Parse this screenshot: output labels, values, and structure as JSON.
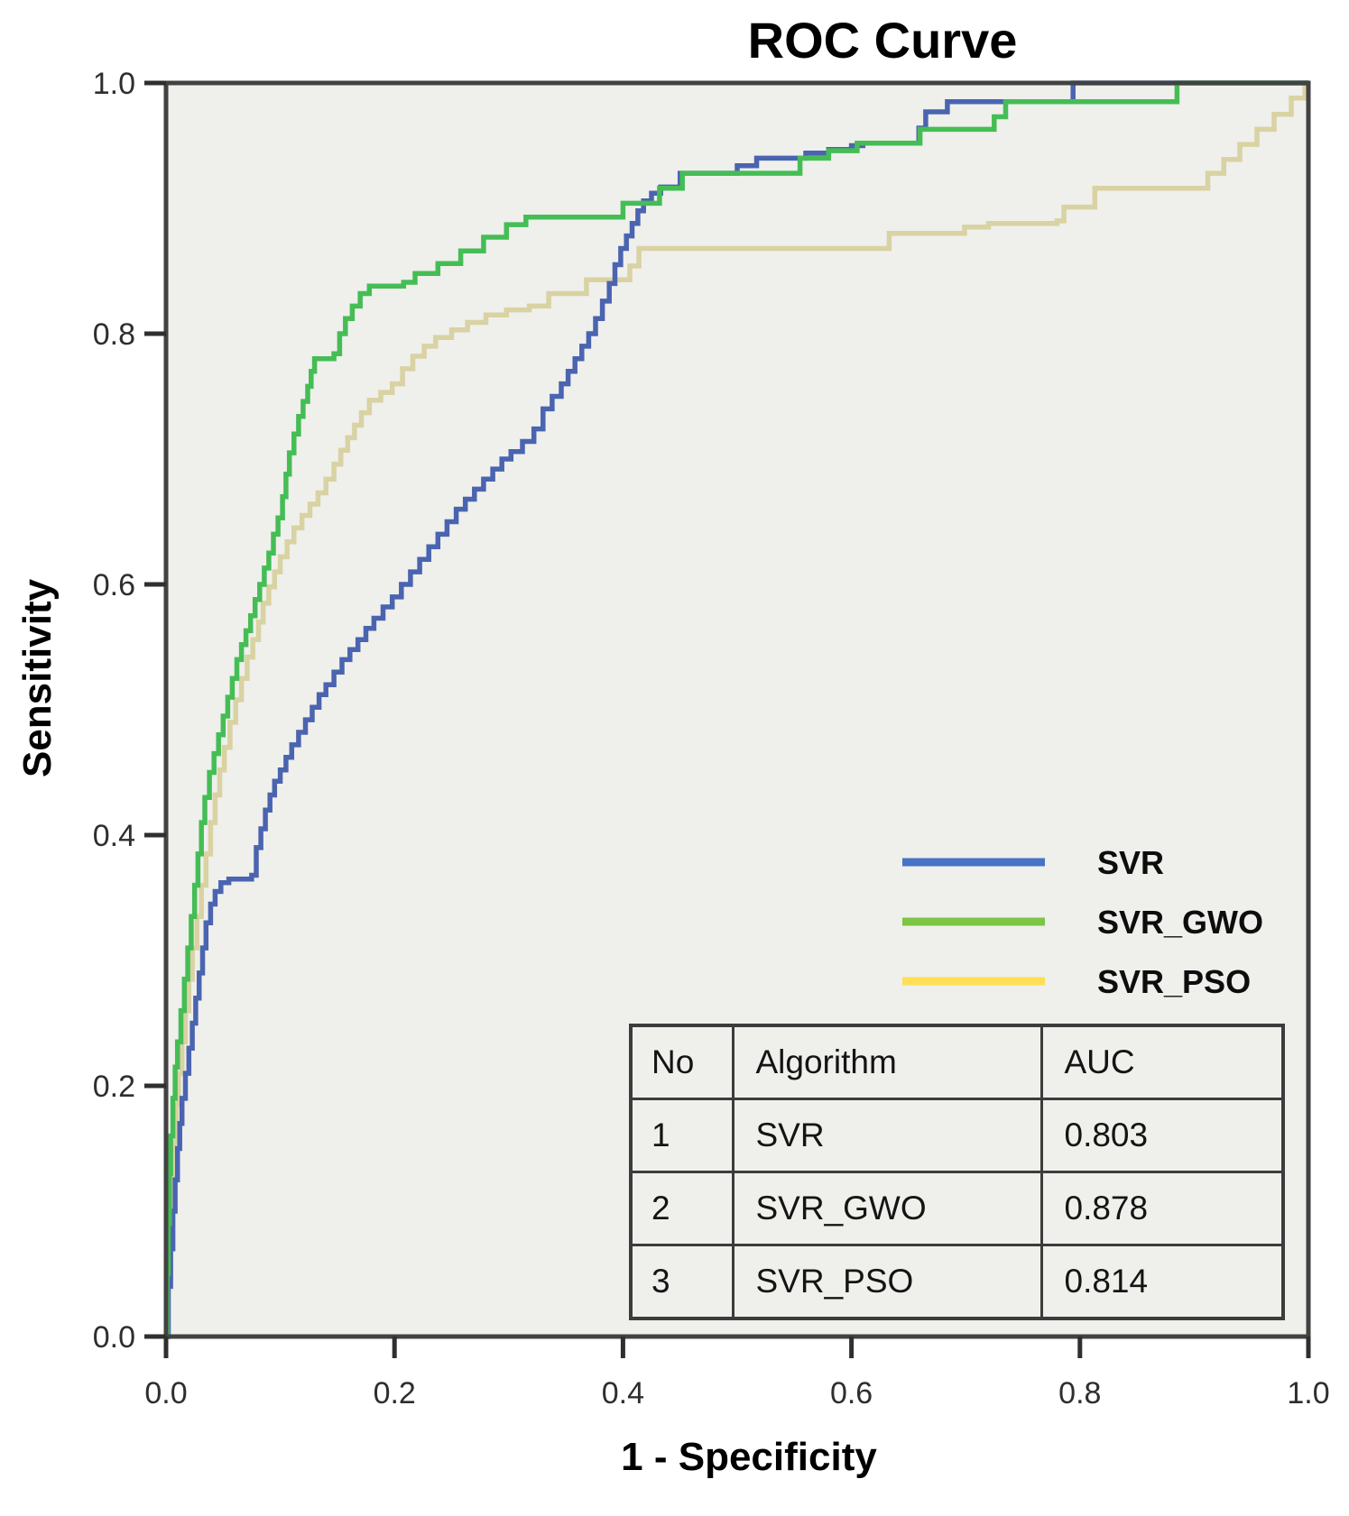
{
  "title": "ROC Curve",
  "axes": {
    "x": {
      "label": "1 - Specificity",
      "tick_labels": [
        "0.0",
        "0.2",
        "0.4",
        "0.6",
        "0.8",
        "1.0"
      ],
      "range": [
        0,
        1
      ]
    },
    "y": {
      "label": "Sensitivity",
      "tick_labels": [
        "0.0",
        "0.2",
        "0.4",
        "0.6",
        "0.8",
        "1.0"
      ],
      "range": [
        0,
        1
      ]
    }
  },
  "legend": [
    {
      "label": "SVR",
      "color": "#4673c6"
    },
    {
      "label": "SVR_GWO",
      "color": "#7dc544"
    },
    {
      "label": "SVR_PSO",
      "color": "#ffdf55"
    }
  ],
  "auc_table": {
    "headers": [
      "No",
      "Algorithm",
      "AUC"
    ],
    "rows": [
      [
        "1",
        "SVR",
        "0.803"
      ],
      [
        "2",
        "SVR_GWO",
        "0.878"
      ],
      [
        "3",
        "SVR_PSO",
        "0.814"
      ]
    ]
  },
  "colors": {
    "curve_svr": "#4a64b0",
    "curve_svr_gwo": "#45bd55",
    "curve_svr_pso": "#d9d2a2",
    "plot_background": "#efefec",
    "frame": "#424242",
    "title_text": "#000000"
  },
  "chart_data": {
    "type": "line",
    "subtype": "roc-step-curves",
    "title": "ROC Curve",
    "xlabel": "1 - Specificity",
    "ylabel": "Sensitivity",
    "xlim": [
      0,
      1
    ],
    "ylim": [
      0,
      1
    ],
    "x_ticks": [
      0.0,
      0.2,
      0.4,
      0.6,
      0.8,
      1.0
    ],
    "y_ticks": [
      0.0,
      0.2,
      0.4,
      0.6,
      0.8,
      1.0
    ],
    "grid": false,
    "legend_position": "center-right",
    "series": [
      {
        "name": "SVR",
        "auc": 0.803,
        "color": "#4a64b0",
        "points": [
          [
            0,
            0
          ],
          [
            0.002,
            0.04
          ],
          [
            0.004,
            0.07
          ],
          [
            0.006,
            0.1
          ],
          [
            0.008,
            0.125
          ],
          [
            0.01,
            0.15
          ],
          [
            0.012,
            0.17
          ],
          [
            0.014,
            0.19
          ],
          [
            0.017,
            0.21
          ],
          [
            0.02,
            0.23
          ],
          [
            0.023,
            0.25
          ],
          [
            0.026,
            0.27
          ],
          [
            0.029,
            0.29
          ],
          [
            0.032,
            0.31
          ],
          [
            0.035,
            0.33
          ],
          [
            0.039,
            0.345
          ],
          [
            0.043,
            0.355
          ],
          [
            0.048,
            0.362
          ],
          [
            0.055,
            0.365
          ],
          [
            0.075,
            0.368
          ],
          [
            0.079,
            0.39
          ],
          [
            0.083,
            0.405
          ],
          [
            0.087,
            0.42
          ],
          [
            0.091,
            0.432
          ],
          [
            0.095,
            0.443
          ],
          [
            0.1,
            0.452
          ],
          [
            0.105,
            0.462
          ],
          [
            0.11,
            0.472
          ],
          [
            0.116,
            0.482
          ],
          [
            0.122,
            0.492
          ],
          [
            0.128,
            0.502
          ],
          [
            0.134,
            0.512
          ],
          [
            0.14,
            0.52
          ],
          [
            0.147,
            0.53
          ],
          [
            0.154,
            0.54
          ],
          [
            0.161,
            0.548
          ],
          [
            0.168,
            0.556
          ],
          [
            0.175,
            0.565
          ],
          [
            0.182,
            0.573
          ],
          [
            0.19,
            0.582
          ],
          [
            0.198,
            0.59
          ],
          [
            0.206,
            0.6
          ],
          [
            0.214,
            0.61
          ],
          [
            0.222,
            0.62
          ],
          [
            0.23,
            0.63
          ],
          [
            0.238,
            0.64
          ],
          [
            0.246,
            0.65
          ],
          [
            0.254,
            0.66
          ],
          [
            0.262,
            0.668
          ],
          [
            0.27,
            0.676
          ],
          [
            0.278,
            0.684
          ],
          [
            0.286,
            0.692
          ],
          [
            0.294,
            0.7
          ],
          [
            0.302,
            0.706
          ],
          [
            0.312,
            0.714
          ],
          [
            0.322,
            0.724
          ],
          [
            0.33,
            0.74
          ],
          [
            0.338,
            0.75
          ],
          [
            0.346,
            0.76
          ],
          [
            0.352,
            0.77
          ],
          [
            0.358,
            0.78
          ],
          [
            0.364,
            0.79
          ],
          [
            0.37,
            0.8
          ],
          [
            0.376,
            0.812
          ],
          [
            0.382,
            0.826
          ],
          [
            0.388,
            0.84
          ],
          [
            0.393,
            0.855
          ],
          [
            0.398,
            0.868
          ],
          [
            0.403,
            0.878
          ],
          [
            0.408,
            0.888
          ],
          [
            0.413,
            0.898
          ],
          [
            0.418,
            0.906
          ],
          [
            0.425,
            0.912
          ],
          [
            0.433,
            0.917
          ],
          [
            0.45,
            0.928
          ],
          [
            0.49,
            0.928
          ],
          [
            0.5,
            0.934
          ],
          [
            0.517,
            0.94
          ],
          [
            0.546,
            0.94
          ],
          [
            0.56,
            0.944
          ],
          [
            0.58,
            0.947
          ],
          [
            0.6,
            0.95
          ],
          [
            0.61,
            0.952
          ],
          [
            0.654,
            0.952
          ],
          [
            0.659,
            0.964
          ],
          [
            0.665,
            0.977
          ],
          [
            0.684,
            0.985
          ],
          [
            0.789,
            0.985
          ],
          [
            0.794,
            1.0
          ],
          [
            1.0,
            1.0
          ]
        ]
      },
      {
        "name": "SVR_GWO",
        "auc": 0.878,
        "color": "#45bd55",
        "points": [
          [
            0,
            0
          ],
          [
            0.001,
            0.05
          ],
          [
            0.002,
            0.09
          ],
          [
            0.003,
            0.13
          ],
          [
            0.004,
            0.16
          ],
          [
            0.006,
            0.19
          ],
          [
            0.008,
            0.215
          ],
          [
            0.01,
            0.235
          ],
          [
            0.013,
            0.26
          ],
          [
            0.016,
            0.285
          ],
          [
            0.019,
            0.31
          ],
          [
            0.022,
            0.335
          ],
          [
            0.025,
            0.36
          ],
          [
            0.028,
            0.385
          ],
          [
            0.031,
            0.41
          ],
          [
            0.034,
            0.43
          ],
          [
            0.038,
            0.45
          ],
          [
            0.042,
            0.465
          ],
          [
            0.046,
            0.48
          ],
          [
            0.05,
            0.495
          ],
          [
            0.054,
            0.51
          ],
          [
            0.058,
            0.525
          ],
          [
            0.062,
            0.54
          ],
          [
            0.066,
            0.552
          ],
          [
            0.07,
            0.563
          ],
          [
            0.074,
            0.575
          ],
          [
            0.078,
            0.588
          ],
          [
            0.082,
            0.6
          ],
          [
            0.086,
            0.613
          ],
          [
            0.09,
            0.625
          ],
          [
            0.094,
            0.64
          ],
          [
            0.098,
            0.653
          ],
          [
            0.102,
            0.67
          ],
          [
            0.105,
            0.688
          ],
          [
            0.108,
            0.705
          ],
          [
            0.112,
            0.72
          ],
          [
            0.116,
            0.734
          ],
          [
            0.12,
            0.746
          ],
          [
            0.124,
            0.758
          ],
          [
            0.127,
            0.77
          ],
          [
            0.13,
            0.78
          ],
          [
            0.147,
            0.784
          ],
          [
            0.152,
            0.8
          ],
          [
            0.157,
            0.812
          ],
          [
            0.163,
            0.822
          ],
          [
            0.17,
            0.832
          ],
          [
            0.178,
            0.838
          ],
          [
            0.208,
            0.841
          ],
          [
            0.218,
            0.848
          ],
          [
            0.238,
            0.856
          ],
          [
            0.258,
            0.866
          ],
          [
            0.278,
            0.877
          ],
          [
            0.298,
            0.887
          ],
          [
            0.315,
            0.893
          ],
          [
            0.394,
            0.893
          ],
          [
            0.4,
            0.904
          ],
          [
            0.426,
            0.904
          ],
          [
            0.432,
            0.916
          ],
          [
            0.452,
            0.928
          ],
          [
            0.546,
            0.928
          ],
          [
            0.555,
            0.94
          ],
          [
            0.58,
            0.946
          ],
          [
            0.605,
            0.952
          ],
          [
            0.653,
            0.952
          ],
          [
            0.66,
            0.963
          ],
          [
            0.716,
            0.963
          ],
          [
            0.725,
            0.973
          ],
          [
            0.735,
            0.985
          ],
          [
            0.879,
            0.985
          ],
          [
            0.885,
            1.0
          ],
          [
            1.0,
            1.0
          ]
        ]
      },
      {
        "name": "SVR_PSO",
        "auc": 0.814,
        "color": "#d9d2a2",
        "points": [
          [
            0,
            0
          ],
          [
            0.001,
            0.04
          ],
          [
            0.003,
            0.08
          ],
          [
            0.005,
            0.12
          ],
          [
            0.007,
            0.155
          ],
          [
            0.009,
            0.185
          ],
          [
            0.011,
            0.21
          ],
          [
            0.014,
            0.235
          ],
          [
            0.017,
            0.26
          ],
          [
            0.02,
            0.285
          ],
          [
            0.023,
            0.31
          ],
          [
            0.027,
            0.335
          ],
          [
            0.031,
            0.36
          ],
          [
            0.035,
            0.385
          ],
          [
            0.039,
            0.41
          ],
          [
            0.043,
            0.432
          ],
          [
            0.047,
            0.452
          ],
          [
            0.051,
            0.47
          ],
          [
            0.056,
            0.49
          ],
          [
            0.061,
            0.508
          ],
          [
            0.066,
            0.525
          ],
          [
            0.071,
            0.542
          ],
          [
            0.076,
            0.556
          ],
          [
            0.081,
            0.57
          ],
          [
            0.085,
            0.585
          ],
          [
            0.09,
            0.598
          ],
          [
            0.095,
            0.61
          ],
          [
            0.1,
            0.622
          ],
          [
            0.106,
            0.634
          ],
          [
            0.112,
            0.645
          ],
          [
            0.119,
            0.655
          ],
          [
            0.126,
            0.664
          ],
          [
            0.133,
            0.673
          ],
          [
            0.14,
            0.684
          ],
          [
            0.147,
            0.696
          ],
          [
            0.153,
            0.707
          ],
          [
            0.159,
            0.717
          ],
          [
            0.165,
            0.727
          ],
          [
            0.171,
            0.737
          ],
          [
            0.178,
            0.747
          ],
          [
            0.188,
            0.753
          ],
          [
            0.198,
            0.76
          ],
          [
            0.207,
            0.772
          ],
          [
            0.216,
            0.782
          ],
          [
            0.226,
            0.79
          ],
          [
            0.236,
            0.797
          ],
          [
            0.25,
            0.803
          ],
          [
            0.264,
            0.809
          ],
          [
            0.28,
            0.815
          ],
          [
            0.298,
            0.819
          ],
          [
            0.318,
            0.822
          ],
          [
            0.335,
            0.832
          ],
          [
            0.362,
            0.832
          ],
          [
            0.368,
            0.843
          ],
          [
            0.399,
            0.843
          ],
          [
            0.406,
            0.854
          ],
          [
            0.414,
            0.868
          ],
          [
            0.627,
            0.868
          ],
          [
            0.633,
            0.88
          ],
          [
            0.688,
            0.88
          ],
          [
            0.699,
            0.885
          ],
          [
            0.72,
            0.888
          ],
          [
            0.78,
            0.89
          ],
          [
            0.786,
            0.901
          ],
          [
            0.813,
            0.916
          ],
          [
            0.906,
            0.916
          ],
          [
            0.912,
            0.928
          ],
          [
            0.926,
            0.939
          ],
          [
            0.94,
            0.951
          ],
          [
            0.955,
            0.963
          ],
          [
            0.97,
            0.975
          ],
          [
            0.985,
            0.988
          ],
          [
            0.997,
            1.0
          ],
          [
            1.0,
            1.0
          ]
        ]
      }
    ]
  }
}
